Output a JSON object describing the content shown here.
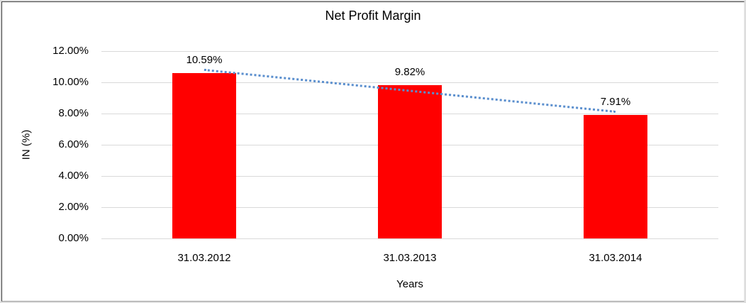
{
  "chart_data": {
    "type": "bar",
    "title": "Net Profit Margin",
    "xlabel": "Years",
    "ylabel": "IN (%)",
    "categories": [
      "31.03.2012",
      "31.03.2013",
      "31.03.2014"
    ],
    "values": [
      10.59,
      9.82,
      7.91
    ],
    "data_labels": [
      "10.59%",
      "9.82%",
      "7.91%"
    ],
    "yticks": [
      {
        "value": 12,
        "label": "12.00%"
      },
      {
        "value": 10,
        "label": "10.00%"
      },
      {
        "value": 8,
        "label": "8.00%"
      },
      {
        "value": 6,
        "label": "6.00%"
      },
      {
        "value": 4,
        "label": "4.00%"
      },
      {
        "value": 2,
        "label": "2.00%"
      },
      {
        "value": 0,
        "label": "0.00%"
      }
    ],
    "ylim": [
      0,
      12
    ],
    "grid": true,
    "legend": "none",
    "bar_color": "#FF0000",
    "gridline_color": "#d9d9d9",
    "trendline": {
      "type": "linear",
      "style": "dotted",
      "color": "#5B8FCE",
      "start_value": 10.78,
      "end_value": 8.1
    }
  }
}
